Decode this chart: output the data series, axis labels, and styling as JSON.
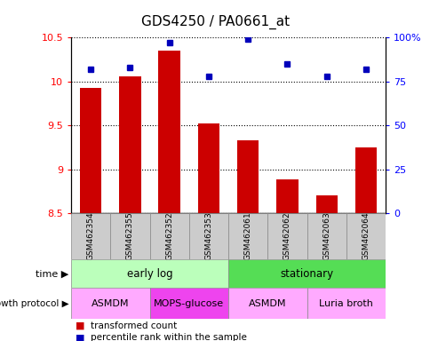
{
  "title": "GDS4250 / PA0661_at",
  "samples": [
    "GSM462354",
    "GSM462355",
    "GSM462352",
    "GSM462353",
    "GSM462061",
    "GSM462062",
    "GSM462063",
    "GSM462064"
  ],
  "transformed_count": [
    9.93,
    10.06,
    10.35,
    9.52,
    9.33,
    8.88,
    8.7,
    9.25
  ],
  "percentile_rank": [
    82,
    83,
    97,
    78,
    99,
    85,
    78,
    82
  ],
  "ylim_left": [
    8.5,
    10.5
  ],
  "ylim_right": [
    0,
    100
  ],
  "yticks_left": [
    8.5,
    9.0,
    9.5,
    10.0,
    10.5
  ],
  "yticks_right": [
    0,
    25,
    50,
    75,
    100
  ],
  "bar_color": "#CC0000",
  "dot_color": "#0000BB",
  "sample_box_color": "#CCCCCC",
  "time_groups": [
    {
      "label": "early log",
      "start": 0,
      "end": 4,
      "color": "#BBFFBB"
    },
    {
      "label": "stationary",
      "start": 4,
      "end": 8,
      "color": "#55DD55"
    }
  ],
  "protocol_groups": [
    {
      "label": "ASMDM",
      "start": 0,
      "end": 2,
      "color": "#FFAAFF"
    },
    {
      "label": "MOPS-glucose",
      "start": 2,
      "end": 4,
      "color": "#EE44EE"
    },
    {
      "label": "ASMDM",
      "start": 4,
      "end": 6,
      "color": "#FFAAFF"
    },
    {
      "label": "Luria broth",
      "start": 6,
      "end": 8,
      "color": "#FFAAFF"
    }
  ],
  "legend_bar_label": "transformed count",
  "legend_dot_label": "percentile rank within the sample",
  "time_label": "time",
  "protocol_label": "growth protocol"
}
